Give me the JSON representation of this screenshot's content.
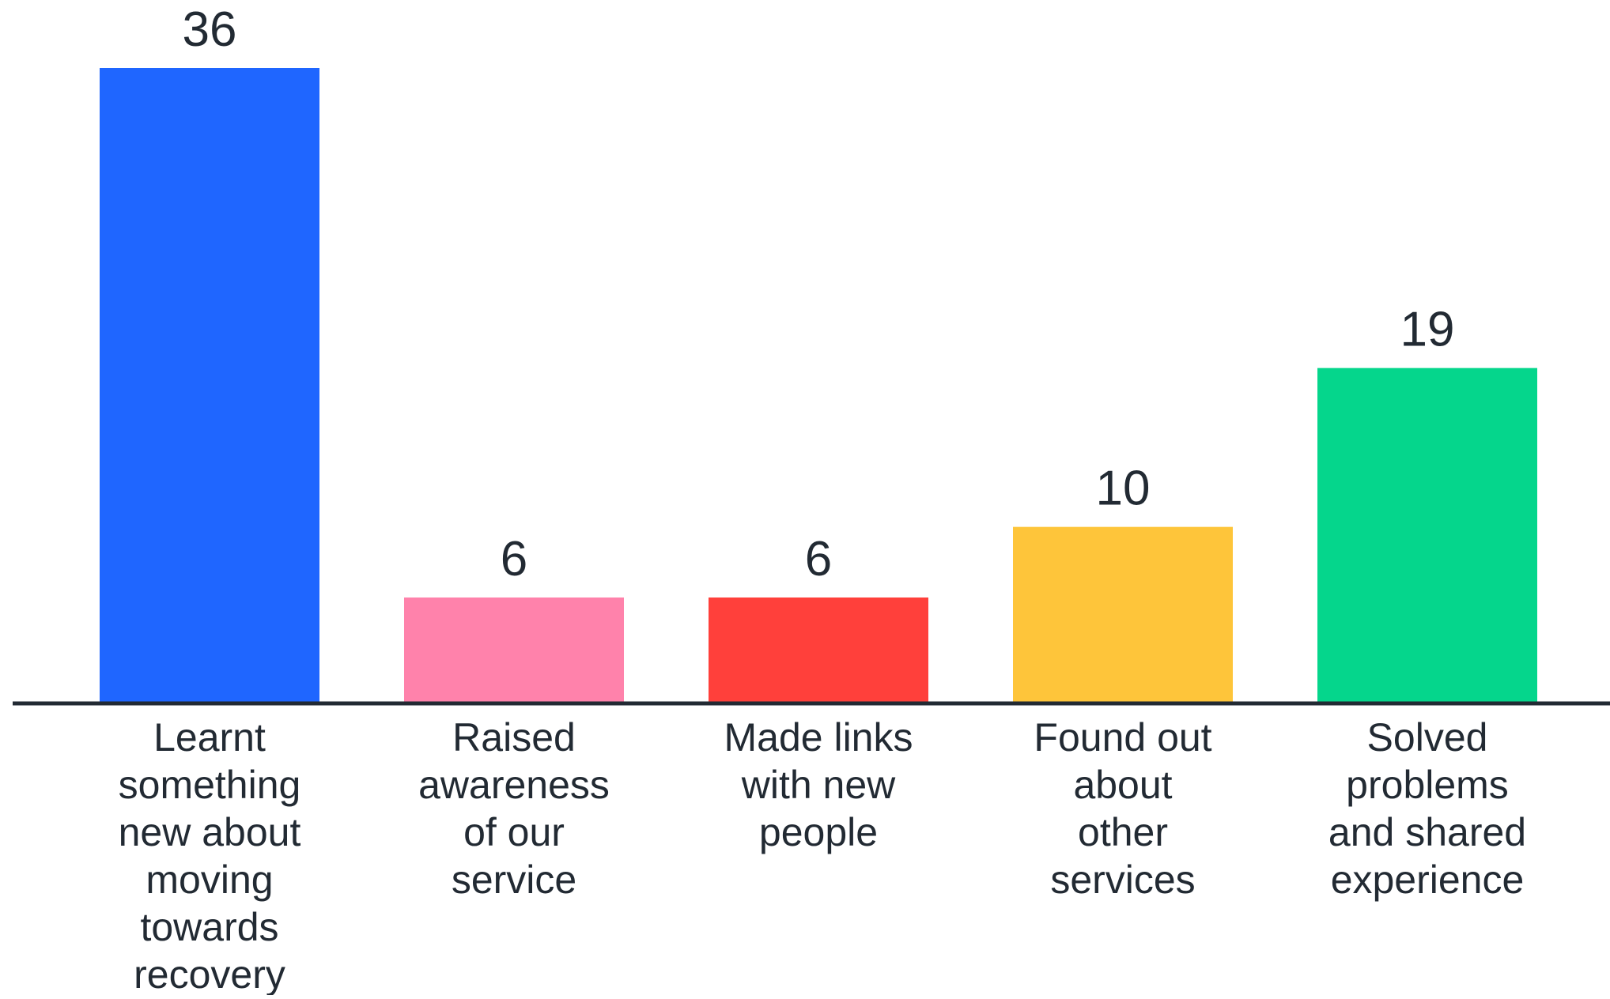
{
  "chart_data": {
    "type": "bar",
    "title": "",
    "xlabel": "",
    "ylabel": "",
    "ylim": [
      0,
      36
    ],
    "grid": false,
    "legend": "none",
    "categories": [
      [
        "Learnt",
        "something",
        "new about",
        "moving",
        "towards",
        "recovery"
      ],
      [
        "Raised",
        "awareness",
        "of our",
        "service"
      ],
      [
        "Made links",
        "with new",
        "people"
      ],
      [
        "Found out",
        "about",
        "other",
        "services"
      ],
      [
        "Solved",
        "problems",
        "and shared",
        "experience"
      ]
    ],
    "values": [
      36,
      6,
      6,
      10,
      19
    ],
    "value_labels": [
      "36",
      "6",
      "6",
      "10",
      "19"
    ],
    "colors": [
      "#1f66ff",
      "#ff82ab",
      "#ff403b",
      "#fec53a",
      "#05d68c"
    ],
    "baseline_color": "#222a33",
    "text_color": "#222a33"
  }
}
